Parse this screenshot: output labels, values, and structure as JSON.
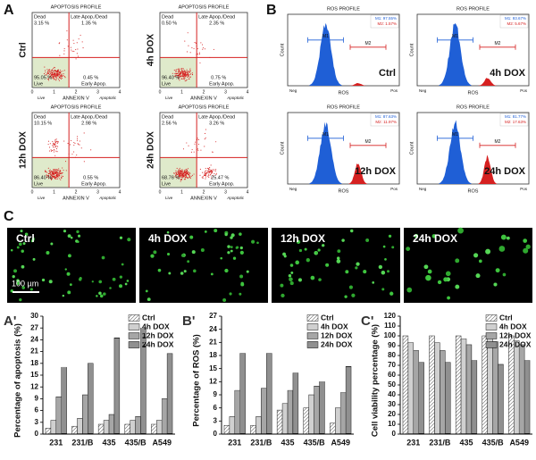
{
  "figure": {
    "panel_a": {
      "letter": "A",
      "title": "APOPTOSIS PROFILE",
      "x_label": "ANNEXIN V",
      "x_left": "Live",
      "x_right": "Apoptotic",
      "x_ticks": [
        "0",
        "1",
        "2",
        "3",
        "4"
      ],
      "q_tl": "Dead",
      "q_tr": "Late Apop./Dead",
      "q_bl": "Live",
      "q_br": "Early Apop.",
      "plots": [
        {
          "label": "Ctrl",
          "tl": "3.15 %",
          "tr": "1.35 %",
          "bl": "95.05 %",
          "br": "0.45 %"
        },
        {
          "label": "4h DOX",
          "tl": "0.50 %",
          "tr": "2.35 %",
          "bl": "96.40 %",
          "br": "0.75 %"
        },
        {
          "label": "12h DOX",
          "tl": "10.15 %",
          "tr": "2.98 %",
          "bl": "86.40 %",
          "br": "0.55 %"
        },
        {
          "label": "24h DOX",
          "tl": "2.56 %",
          "tr": "3.26 %",
          "bl": "68.76 %",
          "br": "25.47 %"
        }
      ]
    },
    "panel_b": {
      "letter": "B",
      "title": "ROS PROFILE",
      "x_label": "ROS",
      "y_label": "Count",
      "x_left": "Neg",
      "x_right": "Pos",
      "m1": "M1",
      "m2": "M2",
      "plots": [
        {
          "label": "Ctrl",
          "m1": "M1: 97.55%",
          "m2": "M2: 1.57%"
        },
        {
          "label": "4h DOX",
          "m1": "M1: 93.67%",
          "m2": "M2: 5.67%"
        },
        {
          "label": "12h DOX",
          "m1": "M1: 87.63%",
          "m2": "M2: 11.97%"
        },
        {
          "label": "24h DOX",
          "m1": "M1: 81.77%",
          "m2": "M2: 17.63%"
        }
      ]
    },
    "panel_c": {
      "letter": "C",
      "scale": "100 µm",
      "images": [
        {
          "label": "Ctrl"
        },
        {
          "label": "4h DOX"
        },
        {
          "label": "12h DOX"
        },
        {
          "label": "24h DOX"
        }
      ]
    }
  },
  "chart_data": [
    {
      "type": "bar",
      "panel_label": "A'",
      "y_label": "Percentage of apoptosis (%)",
      "categories": [
        "231",
        "231/B",
        "435",
        "435/B",
        "A549"
      ],
      "ylim": [
        0,
        30
      ],
      "yticks": [
        0,
        3,
        6,
        9,
        12,
        15,
        18,
        21,
        24,
        27,
        30
      ],
      "series": [
        {
          "name": "Ctrl",
          "color": "#666666",
          "pattern": "diagonal",
          "values": [
            1.5,
            2,
            2.5,
            2.5,
            2.5
          ]
        },
        {
          "name": "4h DOX",
          "color": "#444444",
          "pattern": "horizontal",
          "values": [
            3.5,
            4,
            3.5,
            3.5,
            3.5
          ]
        },
        {
          "name": "12h DOX",
          "color": "#333333",
          "pattern": "grid",
          "values": [
            9.5,
            10,
            5,
            4.5,
            9
          ]
        },
        {
          "name": "24h DOX",
          "color": "#222222",
          "pattern": "dense",
          "values": [
            17,
            18,
            24.5,
            27,
            20.5
          ]
        }
      ]
    },
    {
      "type": "bar",
      "panel_label": "B'",
      "y_label": "Percentage of ROS (%)",
      "categories": [
        "231",
        "231/B",
        "435",
        "435/B",
        "A549"
      ],
      "ylim": [
        0,
        27
      ],
      "yticks": [
        0,
        3,
        6,
        9,
        12,
        15,
        18,
        21,
        24,
        27
      ],
      "series": [
        {
          "name": "Ctrl",
          "color": "#666666",
          "pattern": "diagonal",
          "values": [
            2,
            2,
            5.5,
            6,
            2.5
          ]
        },
        {
          "name": "4h DOX",
          "color": "#444444",
          "pattern": "horizontal",
          "values": [
            4,
            4,
            7,
            9,
            6
          ]
        },
        {
          "name": "12h DOX",
          "color": "#333333",
          "pattern": "grid",
          "values": [
            10,
            10.5,
            10,
            11,
            9.5
          ]
        },
        {
          "name": "24h DOX",
          "color": "#222222",
          "pattern": "dense",
          "values": [
            18.5,
            18.5,
            14,
            12,
            15.5
          ]
        }
      ]
    },
    {
      "type": "bar",
      "panel_label": "C'",
      "y_label": "Cell viability percentage (%)",
      "categories": [
        "231",
        "231/B",
        "435",
        "435/B",
        "A549"
      ],
      "ylim": [
        0,
        120
      ],
      "yticks": [
        0,
        10,
        20,
        30,
        40,
        50,
        60,
        70,
        80,
        90,
        100,
        110,
        120
      ],
      "series": [
        {
          "name": "Ctrl",
          "color": "#666666",
          "pattern": "diagonal",
          "values": [
            100,
            100,
            100,
            100,
            100
          ]
        },
        {
          "name": "4h DOX",
          "color": "#444444",
          "pattern": "horizontal",
          "values": [
            93,
            93,
            97,
            97,
            95
          ]
        },
        {
          "name": "12h DOX",
          "color": "#333333",
          "pattern": "grid",
          "values": [
            85,
            85,
            91,
            94,
            91
          ]
        },
        {
          "name": "24h DOX",
          "color": "#222222",
          "pattern": "dense",
          "values": [
            73,
            73,
            75,
            71,
            75
          ]
        }
      ]
    }
  ]
}
